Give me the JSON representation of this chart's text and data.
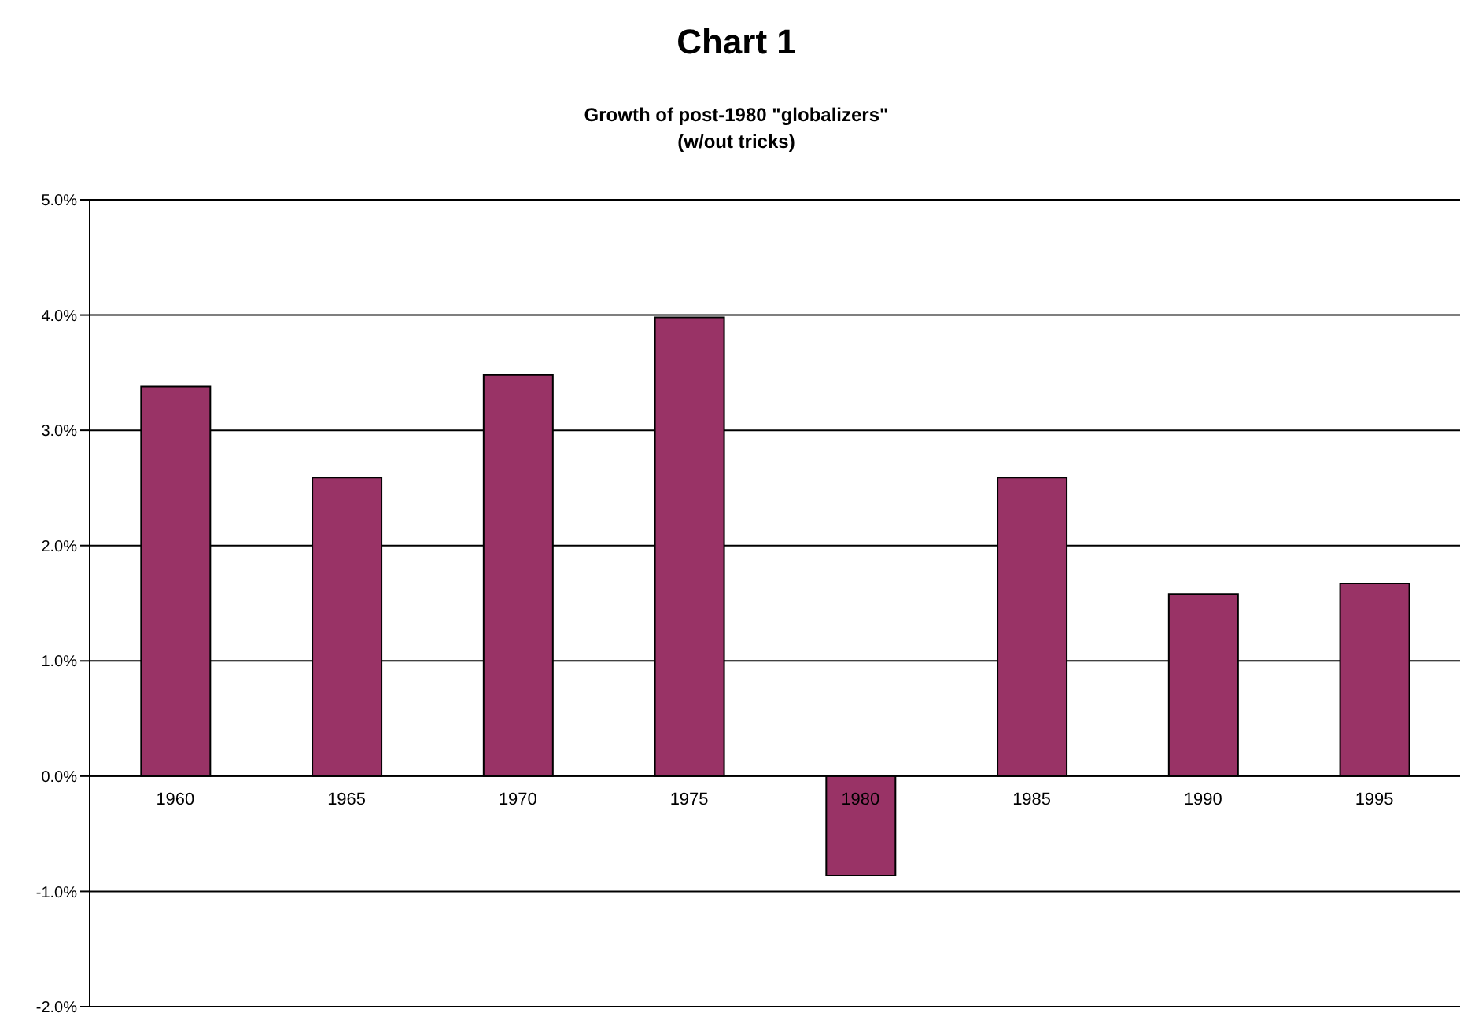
{
  "chart_data": {
    "type": "bar",
    "title": "Chart 1",
    "subtitle": "Growth of post-1980 \"globalizers\"\n(w/out tricks)",
    "categories": [
      "1960",
      "1965",
      "1970",
      "1975",
      "1980",
      "1985",
      "1990",
      "1995"
    ],
    "values": [
      3.38,
      2.59,
      3.48,
      3.98,
      -0.86,
      2.59,
      1.58,
      1.67
    ],
    "color": "#993366",
    "ylim": [
      -2,
      5
    ],
    "yticks": [
      {
        "value": -2,
        "label": "-2.0%"
      },
      {
        "value": -1,
        "label": "-1.0%"
      },
      {
        "value": 0,
        "label": "0.0%"
      },
      {
        "value": 1,
        "label": "1.0%"
      },
      {
        "value": 2,
        "label": "2.0%"
      },
      {
        "value": 3,
        "label": "3.0%"
      },
      {
        "value": 4,
        "label": "4.0%"
      },
      {
        "value": 5,
        "label": "5.0%"
      }
    ],
    "grid": "y",
    "legend": false
  }
}
